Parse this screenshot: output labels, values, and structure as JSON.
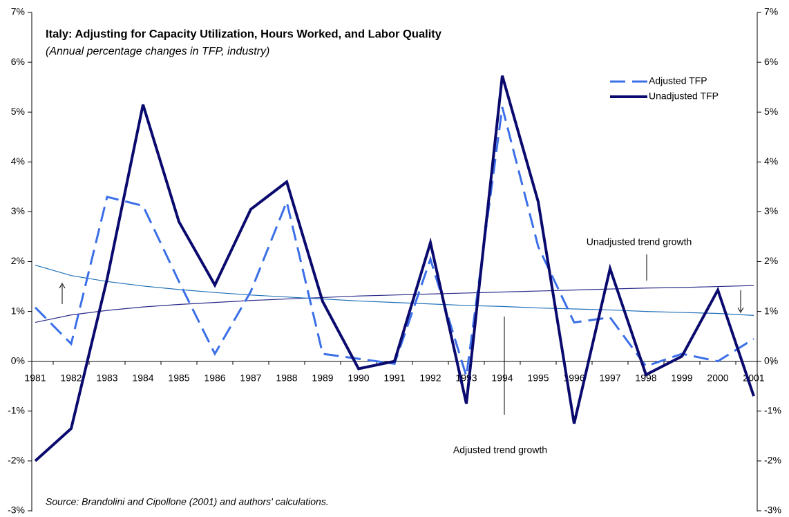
{
  "chart_data": {
    "type": "line",
    "title": "Italy: Adjusting for Capacity Utilization, Hours Worked, and Labor Quality",
    "subtitle": "(Annual percentage changes in TFP, industry)",
    "source": "Source: Brandolini and Cipollone (2001) and authors' calculations.",
    "categories": [
      "1981",
      "1982",
      "1983",
      "1984",
      "1985",
      "1986",
      "1987",
      "1988",
      "1989",
      "1990",
      "1991",
      "1992",
      "1993",
      "1994",
      "1995",
      "1996",
      "1997",
      "1998",
      "1999",
      "2000",
      "2001"
    ],
    "series": [
      {
        "name": "Adjusted TFP",
        "color": "#3b6fe8",
        "dashed": true,
        "values": [
          1.08,
          0.35,
          3.3,
          3.12,
          1.6,
          0.15,
          1.4,
          3.2,
          0.15,
          0.05,
          -0.05,
          2.05,
          -0.3,
          5.1,
          2.3,
          0.78,
          0.88,
          -0.1,
          0.15,
          0.0,
          0.45
        ]
      },
      {
        "name": "Unadjusted TFP",
        "color": "#0a0a6e",
        "dashed": false,
        "values": [
          -2.0,
          -1.35,
          1.65,
          5.15,
          2.8,
          1.53,
          3.05,
          3.6,
          1.2,
          -0.15,
          0.0,
          2.38,
          -0.85,
          5.73,
          3.2,
          -1.25,
          1.86,
          -0.27,
          0.1,
          1.43,
          -0.7
        ]
      }
    ],
    "trends": [
      {
        "name": "Unadjusted trend growth",
        "color": "#2a2a8a",
        "values": [
          0.78,
          0.93,
          1.02,
          1.09,
          1.14,
          1.18,
          1.22,
          1.25,
          1.28,
          1.31,
          1.33,
          1.35,
          1.37,
          1.39,
          1.41,
          1.43,
          1.45,
          1.47,
          1.48,
          1.5,
          1.52
        ]
      },
      {
        "name": "Adjusted trend growth",
        "color": "#1f6fb8",
        "values": [
          1.93,
          1.72,
          1.6,
          1.51,
          1.44,
          1.38,
          1.33,
          1.29,
          1.25,
          1.21,
          1.18,
          1.15,
          1.12,
          1.1,
          1.07,
          1.05,
          1.03,
          1.0,
          0.98,
          0.96,
          0.92
        ]
      }
    ],
    "ylim": [
      -3,
      7
    ],
    "yticks": [
      {
        "value": -3,
        "label": "-3%"
      },
      {
        "value": -2,
        "label": "-2%"
      },
      {
        "value": -1,
        "label": "-1%"
      },
      {
        "value": 0,
        "label": "0%"
      },
      {
        "value": 1,
        "label": "1%"
      },
      {
        "value": 2,
        "label": "2%"
      },
      {
        "value": 3,
        "label": "3%"
      },
      {
        "value": 4,
        "label": "4%"
      },
      {
        "value": 5,
        "label": "5%"
      },
      {
        "value": 6,
        "label": "6%"
      },
      {
        "value": 7,
        "label": "7%"
      }
    ],
    "y2lim": [
      -3,
      7
    ],
    "y2ticks": [
      {
        "value": -3,
        "label": "-3%"
      },
      {
        "value": -2,
        "label": "-2%"
      },
      {
        "value": -1,
        "label": "-1%"
      },
      {
        "value": 0,
        "label": "0%"
      },
      {
        "value": 1,
        "label": "1%"
      },
      {
        "value": 2,
        "label": "2%"
      },
      {
        "value": 3,
        "label": "3%"
      },
      {
        "value": 4,
        "label": "4%"
      },
      {
        "value": 5,
        "label": "5%"
      },
      {
        "value": 6,
        "label": "6%"
      },
      {
        "value": 7,
        "label": "7%"
      }
    ],
    "grid": false,
    "legend": "top-right"
  }
}
